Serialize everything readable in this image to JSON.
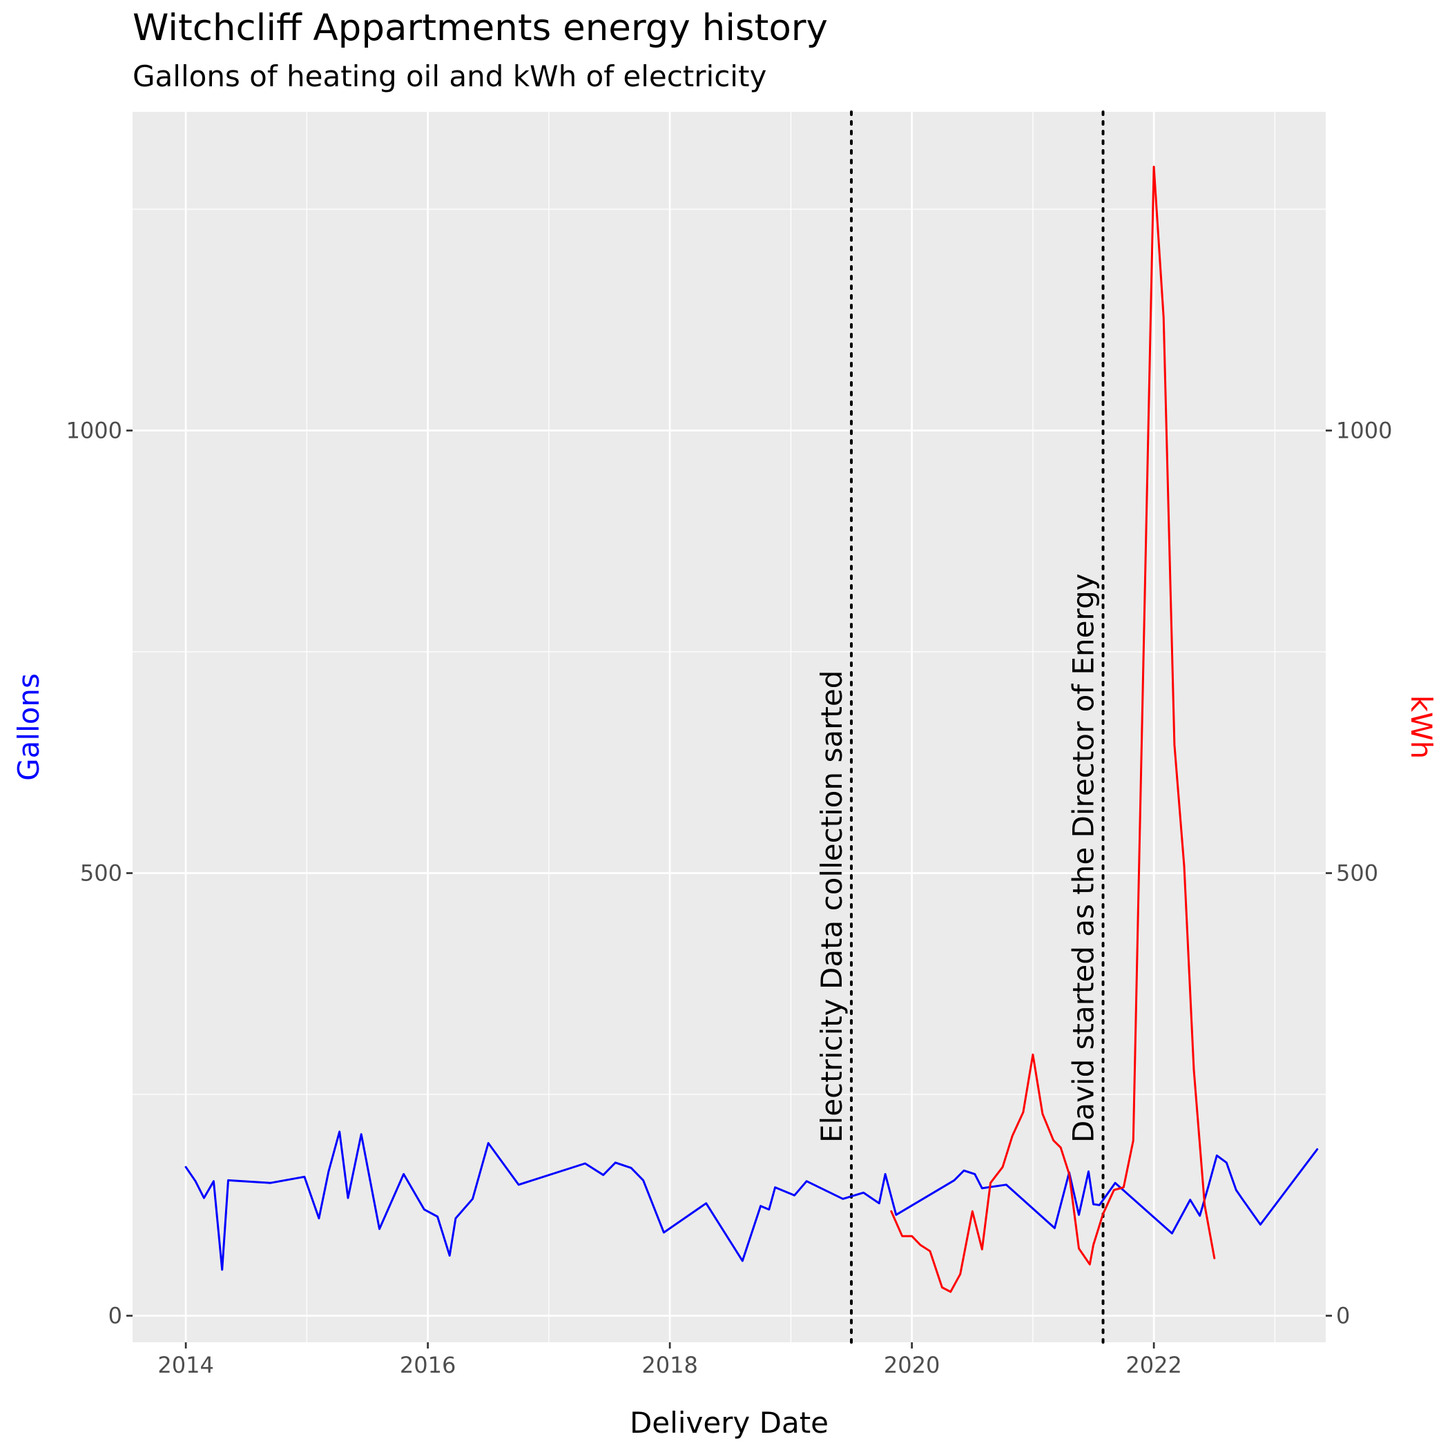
{
  "chart_data": {
    "type": "line",
    "title": "Witchcliff Appartments energy history",
    "subtitle": "Gallons of heating oil and kWh of electricity",
    "xlabel": "Delivery Date",
    "ylabel_left": "Gallons",
    "ylabel_right": "kWh",
    "xlim": [
      2013.56,
      2023.42
    ],
    "ylim": [
      -30,
      1360
    ],
    "x_ticks": [
      2014,
      2016,
      2018,
      2020,
      2022
    ],
    "x_tick_labels": [
      "2014",
      "2016",
      "2018",
      "2020",
      "2022"
    ],
    "y_ticks": [
      0,
      500,
      1000
    ],
    "y_tick_labels": [
      "0",
      "500",
      "1000"
    ],
    "grid": true,
    "colors": {
      "gallons": "#0000ff",
      "kwh": "#ff0000",
      "panel": "#ebebeb",
      "grid": "#ffffff",
      "vline": "#000000"
    },
    "series": [
      {
        "name": "Gallons",
        "color": "#0000ff",
        "x": [
          2014.0,
          2014.08,
          2014.15,
          2014.23,
          2014.3,
          2014.35,
          2014.7,
          2014.98,
          2015.1,
          2015.18,
          2015.27,
          2015.34,
          2015.45,
          2015.6,
          2015.8,
          2015.97,
          2016.08,
          2016.18,
          2016.23,
          2016.37,
          2016.5,
          2016.75,
          2017.3,
          2017.45,
          2017.55,
          2017.68,
          2017.78,
          2017.95,
          2018.3,
          2018.6,
          2018.75,
          2018.82,
          2018.87,
          2019.03,
          2019.13,
          2019.43,
          2019.6,
          2019.73,
          2019.78,
          2019.87,
          2020.35,
          2020.43,
          2020.52,
          2020.58,
          2020.78,
          2021.18,
          2021.3,
          2021.38,
          2021.46,
          2021.5,
          2021.55,
          2021.68,
          2022.15,
          2022.3,
          2022.38,
          2022.45,
          2022.52,
          2022.6,
          2022.68,
          2022.73,
          2022.88,
          2023.35
        ],
        "y": [
          168,
          152,
          133,
          152,
          52,
          153,
          150,
          157,
          110,
          163,
          208,
          133,
          205,
          98,
          160,
          120,
          112,
          68,
          110,
          132,
          195,
          148,
          172,
          159,
          173,
          167,
          153,
          94,
          127,
          62,
          124,
          120,
          145,
          136,
          152,
          132,
          139,
          127,
          160,
          114,
          153,
          164,
          160,
          144,
          148,
          99,
          162,
          114,
          163,
          126,
          125,
          150,
          93,
          131,
          113,
          146,
          181,
          173,
          142,
          132,
          103,
          188
        ]
      },
      {
        "name": "kWh",
        "color": "#ff0000",
        "x": [
          2019.83,
          2019.92,
          2020.0,
          2020.07,
          2020.15,
          2020.25,
          2020.32,
          2020.4,
          2020.5,
          2020.58,
          2020.65,
          2020.75,
          2020.83,
          2020.92,
          2021.0,
          2021.08,
          2021.17,
          2021.23,
          2021.3,
          2021.38,
          2021.47,
          2021.5,
          2021.58,
          2021.67,
          2021.75,
          2021.83,
          2022.0,
          2022.08,
          2022.17,
          2022.25,
          2022.33,
          2022.42,
          2022.5
        ],
        "y": [
          118,
          90,
          90,
          80,
          73,
          32,
          27,
          47,
          118,
          75,
          150,
          168,
          203,
          230,
          295,
          228,
          198,
          190,
          160,
          76,
          58,
          80,
          115,
          142,
          145,
          198,
          1298,
          1128,
          645,
          508,
          278,
          125,
          65
        ]
      }
    ],
    "annotations": [
      {
        "x": 2019.5,
        "label": "Electricity Data collection sarted",
        "style": "dotted"
      },
      {
        "x": 2021.58,
        "label": "David started as the Director of Energy",
        "style": "dotted"
      }
    ]
  }
}
